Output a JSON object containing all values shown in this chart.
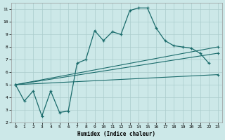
{
  "xlabel": "Humidex (Indice chaleur)",
  "bg_color": "#cce8e8",
  "grid_color": "#aacccc",
  "line_color": "#1a6b6b",
  "xlim": [
    -0.5,
    23.5
  ],
  "ylim": [
    2,
    11.5
  ],
  "xticks": [
    0,
    1,
    2,
    3,
    4,
    5,
    6,
    7,
    8,
    9,
    10,
    11,
    12,
    13,
    14,
    15,
    16,
    17,
    18,
    19,
    20,
    21,
    22,
    23
  ],
  "yticks": [
    2,
    3,
    4,
    5,
    6,
    7,
    8,
    9,
    10,
    11
  ],
  "line1_x": [
    0,
    1,
    2,
    3,
    4,
    5,
    6,
    7,
    8,
    9,
    10,
    11,
    12,
    13,
    14,
    15,
    16,
    17,
    18,
    19,
    20,
    21,
    22
  ],
  "line1_y": [
    5.0,
    3.7,
    4.5,
    2.5,
    4.5,
    2.8,
    2.9,
    6.7,
    7.0,
    9.3,
    8.5,
    9.2,
    9.0,
    10.9,
    11.1,
    11.1,
    9.5,
    8.5,
    8.1,
    8.0,
    7.9,
    7.5,
    6.7
  ],
  "line2_x": [
    0,
    23
  ],
  "line2_y": [
    5.0,
    8.0
  ],
  "line3_x": [
    0,
    23
  ],
  "line3_y": [
    5.0,
    7.5
  ],
  "line4_x": [
    0,
    23
  ],
  "line4_y": [
    5.0,
    5.8
  ]
}
